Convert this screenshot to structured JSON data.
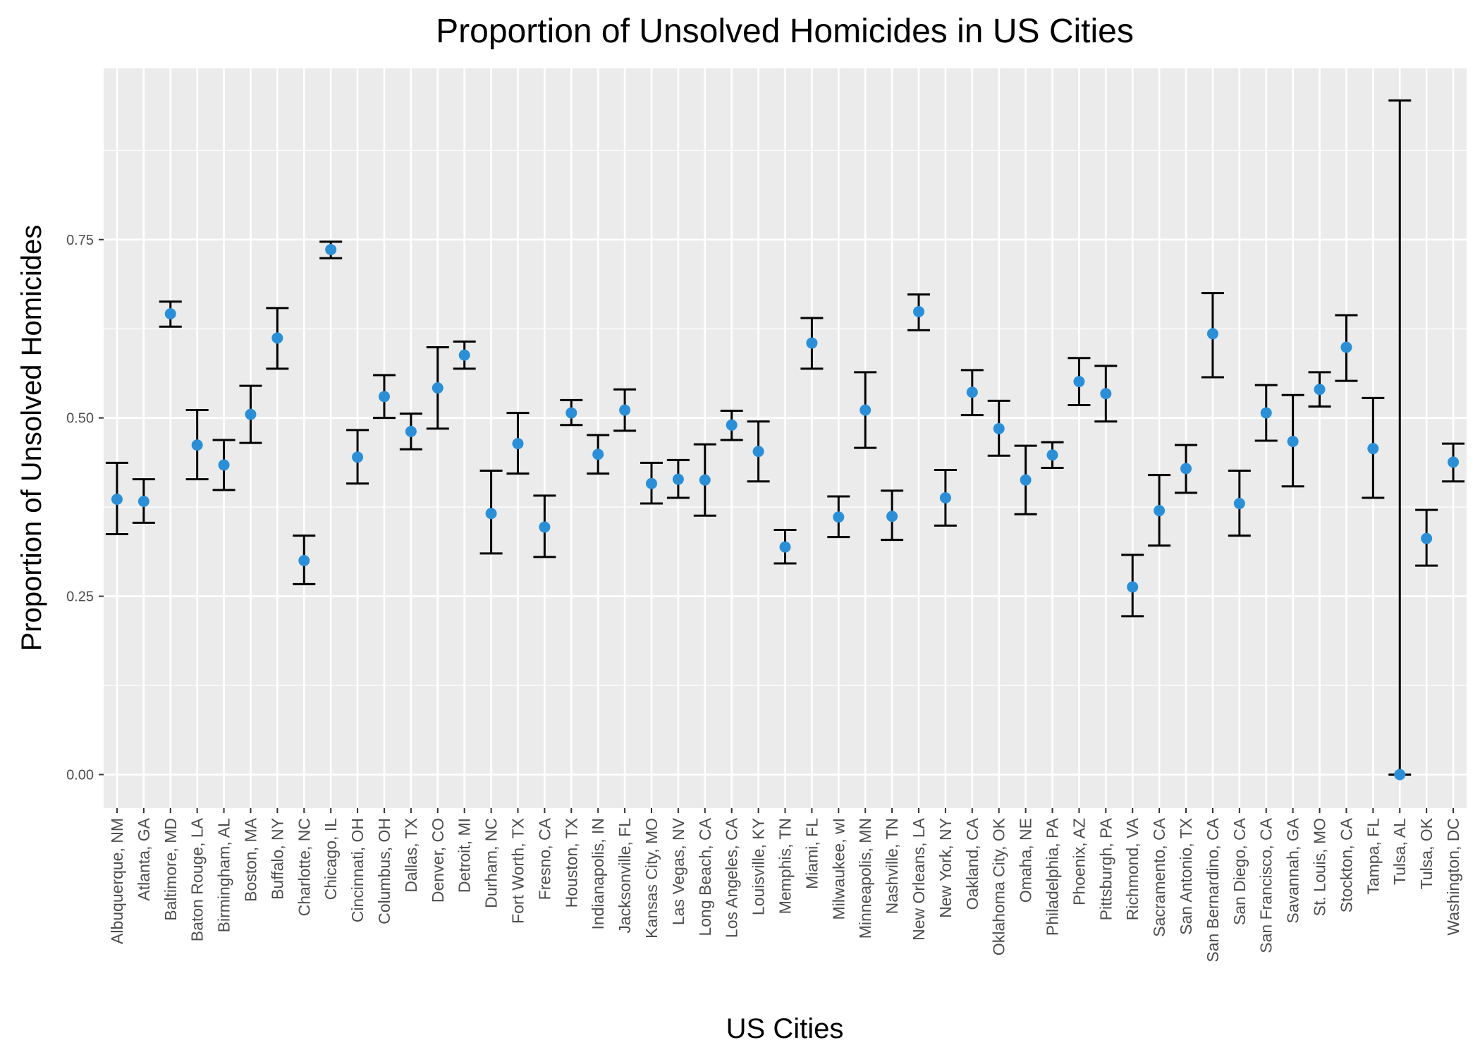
{
  "chart_data": {
    "type": "scatter",
    "title": "Proportion of Unsolved Homicides in US Cities",
    "xlabel": "US Cities",
    "ylabel": "Proportion of Unsolved Homicides",
    "ylim": [
      -0.047,
      0.99
    ],
    "yticks": [
      0.0,
      0.25,
      0.5,
      0.75
    ],
    "ytick_labels": [
      "0.00",
      "0.25",
      "0.50",
      "0.75"
    ],
    "grid": true,
    "error_bars": true,
    "colors": {
      "panel": "#ebebeb",
      "grid": "#ffffff",
      "point": "#2b8fd8",
      "errorbar": "#000000"
    },
    "categories": [
      "Albuquerque, NM",
      "Atlanta, GA",
      "Baltimore, MD",
      "Baton Rouge, LA",
      "Birmingham, AL",
      "Boston, MA",
      "Buffalo, NY",
      "Charlotte, NC",
      "Chicago, IL",
      "Cincinnati, OH",
      "Columbus, OH",
      "Dallas, TX",
      "Denver, CO",
      "Detroit, MI",
      "Durham, NC",
      "Fort Worth, TX",
      "Fresno, CA",
      "Houston, TX",
      "Indianapolis, IN",
      "Jacksonville, FL",
      "Kansas City, MO",
      "Las Vegas, NV",
      "Long Beach, CA",
      "Los Angeles, CA",
      "Louisville, KY",
      "Memphis, TN",
      "Miami, FL",
      "Milwaukee, wI",
      "Minneapolis, MN",
      "Nashville, TN",
      "New Orleans, LA",
      "New York, NY",
      "Oakland, CA",
      "Oklahoma City, OK",
      "Omaha, NE",
      "Philadelphia, PA",
      "Phoenix, AZ",
      "Pittsburgh, PA",
      "Richmond, VA",
      "Sacramento, CA",
      "San Antonio, TX",
      "San Bernardino, CA",
      "San Diego, CA",
      "San Francisco, CA",
      "Savannah, GA",
      "St. Louis, MO",
      "Stockton, CA",
      "Tampa, FL",
      "Tulsa, AL",
      "Tulsa, OK",
      "Washington, DC"
    ],
    "series": [
      {
        "values": [
          0.386,
          0.383,
          0.646,
          0.462,
          0.434,
          0.505,
          0.612,
          0.3,
          0.736,
          0.445,
          0.53,
          0.481,
          0.542,
          0.588,
          0.366,
          0.464,
          0.347,
          0.507,
          0.449,
          0.511,
          0.408,
          0.414,
          0.413,
          0.49,
          0.453,
          0.319,
          0.605,
          0.361,
          0.511,
          0.362,
          0.649,
          0.388,
          0.536,
          0.485,
          0.413,
          0.448,
          0.551,
          0.534,
          0.263,
          0.37,
          0.429,
          0.618,
          0.38,
          0.507,
          0.467,
          0.54,
          0.599,
          0.457,
          0.0,
          0.331,
          0.438
        ],
        "lower": [
          0.337,
          0.353,
          0.628,
          0.414,
          0.399,
          0.465,
          0.569,
          0.267,
          0.724,
          0.408,
          0.5,
          0.456,
          0.485,
          0.569,
          0.31,
          0.422,
          0.305,
          0.49,
          0.422,
          0.482,
          0.38,
          0.388,
          0.363,
          0.469,
          0.411,
          0.296,
          0.569,
          0.333,
          0.458,
          0.329,
          0.623,
          0.349,
          0.504,
          0.447,
          0.365,
          0.43,
          0.518,
          0.495,
          0.222,
          0.321,
          0.395,
          0.557,
          0.335,
          0.468,
          0.404,
          0.516,
          0.552,
          0.388,
          0.0,
          0.293,
          0.411
        ],
        "upper": [
          0.437,
          0.414,
          0.663,
          0.511,
          0.469,
          0.545,
          0.654,
          0.335,
          0.747,
          0.483,
          0.56,
          0.506,
          0.599,
          0.607,
          0.426,
          0.507,
          0.391,
          0.525,
          0.476,
          0.54,
          0.437,
          0.441,
          0.463,
          0.51,
          0.495,
          0.343,
          0.64,
          0.39,
          0.564,
          0.398,
          0.673,
          0.427,
          0.567,
          0.524,
          0.461,
          0.466,
          0.584,
          0.573,
          0.308,
          0.42,
          0.462,
          0.675,
          0.426,
          0.546,
          0.532,
          0.564,
          0.644,
          0.528,
          0.945,
          0.371,
          0.464
        ]
      }
    ]
  }
}
